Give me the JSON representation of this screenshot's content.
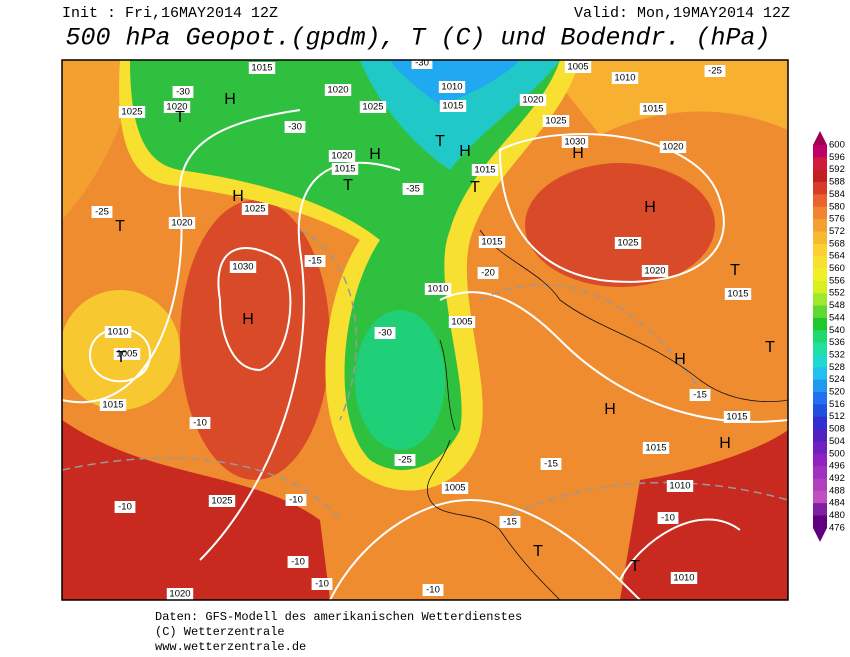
{
  "header": {
    "init": "Init : Fri,16MAY2014 12Z",
    "valid": "Valid: Mon,19MAY2014 12Z",
    "title": "500 hPa Geopot.(gpdm), T (C) und Bodendr. (hPa)"
  },
  "colorbar": {
    "levels": [
      600,
      596,
      592,
      588,
      584,
      580,
      576,
      572,
      568,
      564,
      560,
      556,
      552,
      548,
      544,
      540,
      536,
      532,
      528,
      524,
      520,
      516,
      512,
      508,
      504,
      500,
      496,
      492,
      488,
      484,
      480,
      476
    ]
  },
  "map": {
    "labels": [
      "1015",
      "1020",
      "1025",
      "H",
      "T",
      "-30",
      "1020",
      "1025",
      "-30",
      "1020",
      "1015",
      "H",
      "T",
      "-35",
      "1010",
      "1015",
      "-30",
      "1005",
      "1010",
      "1020",
      "1025",
      "-25",
      "1015",
      "T",
      "H",
      "1015",
      "T",
      "1030",
      "H",
      "1020",
      "H",
      "1025",
      "1020",
      "T",
      "1015",
      "1025",
      "H",
      "1020",
      "-25",
      "T",
      "1030",
      "H",
      "-15",
      "1010",
      "1005",
      "T",
      "1015",
      "-10",
      "1025",
      "-10",
      "-10",
      "1020",
      "1010",
      "-30",
      "1005",
      "-25",
      "1005",
      "1010",
      "T",
      "T",
      "1010",
      "H",
      "1015",
      "H",
      "1015",
      "H",
      "T",
      "-15",
      "-15",
      "-20",
      "1015",
      "-10",
      "-10",
      "-10",
      "-10",
      "-15"
    ]
  },
  "footer": {
    "lines": [
      "Daten: GFS-Modell des amerikanischen Wetterdienstes",
      "(C) Wetterzentrale",
      "www.wetterzentrale.de"
    ]
  }
}
